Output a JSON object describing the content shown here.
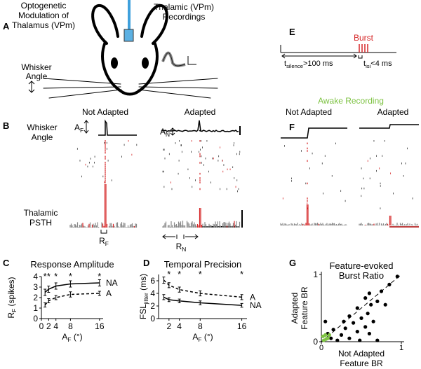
{
  "panel_a": {
    "letter": "A",
    "opto_title": [
      "Optogenetic",
      "Modulation of",
      "Thalamus (VPm)"
    ],
    "recording_title": [
      "Thalamic (VPm)",
      "Recordings"
    ],
    "whisker_label": [
      "Whisker",
      "Angle"
    ]
  },
  "panel_b": {
    "letter": "B",
    "not_adapted": "Not Adapted",
    "adapted": "Adapted",
    "whisker_label": [
      "Whisker",
      "Angle"
    ],
    "af": {
      "main": "A",
      "sub": "F"
    },
    "an": {
      "main": "A",
      "sub": "N"
    },
    "psth_label": [
      "Thalamic",
      "PSTH"
    ],
    "rf": {
      "main": "R",
      "sub": "F"
    },
    "rn": {
      "main": "R",
      "sub": "N"
    }
  },
  "panel_e": {
    "letter": "E",
    "burst": "Burst",
    "t_silence": {
      "main": "t",
      "sub": "silence",
      "rest": ">100 ms"
    },
    "t_isi": {
      "main": "t",
      "sub": "isi",
      "rest": "<4 ms"
    }
  },
  "panel_f": {
    "letter": "F",
    "title": "Awake Recording",
    "not_adapted": "Not Adapted",
    "adapted": "Adapted"
  },
  "panel_c": {
    "letter": "C",
    "type": "line",
    "title": "Response Amplitude",
    "ylabel": {
      "main": "R",
      "sub": "F",
      "rest": " (spikes)"
    },
    "xlabel": {
      "main": "A",
      "sub": "F",
      "rest": " (°)"
    },
    "x": [
      1,
      2,
      4,
      8,
      16
    ],
    "series": [
      {
        "name": "NA",
        "color": "#000000",
        "dashed": false,
        "values": [
          2.5,
          2.8,
          3.1,
          3.3,
          3.4
        ],
        "errors": [
          0.3,
          0.3,
          0.3,
          0.3,
          0.3
        ]
      },
      {
        "name": "A",
        "color": "#000000",
        "dashed": true,
        "values": [
          1.3,
          1.7,
          2.0,
          2.3,
          2.4
        ],
        "errors": [
          0.2,
          0.2,
          0.2,
          0.25,
          0.2
        ]
      }
    ],
    "significance": [
      "*",
      "*",
      "*",
      "*",
      "*"
    ],
    "xlim": [
      0,
      17
    ],
    "ylim": [
      0,
      4
    ],
    "xticks": [
      0,
      2,
      4,
      8,
      16
    ],
    "yticks": [
      0,
      1,
      2,
      3,
      4
    ]
  },
  "panel_d": {
    "letter": "D",
    "type": "line",
    "title": "Temporal Precision",
    "ylabel": {
      "main": "FSL",
      "sub": "jitter",
      "rest": " (ms)"
    },
    "xlabel": {
      "main": "A",
      "sub": "F",
      "rest": " (°)"
    },
    "x": [
      1,
      2,
      4,
      8,
      16
    ],
    "series": [
      {
        "name": "A",
        "color": "#000000",
        "dashed": true,
        "values": [
          6.1,
          5.3,
          4.6,
          4.0,
          3.4
        ],
        "errors": [
          0.5,
          0.4,
          0.4,
          0.4,
          0.4
        ]
      },
      {
        "name": "NA",
        "color": "#000000",
        "dashed": false,
        "values": [
          3.4,
          3.0,
          2.8,
          2.5,
          2.1
        ],
        "errors": [
          0.4,
          0.3,
          0.3,
          0.3,
          0.3
        ]
      }
    ],
    "significance": [
      null,
      "*",
      "*",
      "*",
      "*"
    ],
    "xlim": [
      0,
      17
    ],
    "ylim": [
      0,
      7
    ],
    "xticks": [
      2,
      4,
      8,
      16
    ],
    "yticks": [
      0,
      2,
      4,
      6
    ]
  },
  "panel_g": {
    "letter": "G",
    "type": "scatter",
    "title": [
      "Feature-evoked",
      "Burst Ratio"
    ],
    "ylabel": [
      "Adapted",
      "Feature BR"
    ],
    "xlabel": [
      "Not Adapted",
      "Feature BR"
    ],
    "series": [
      {
        "color": "#000000",
        "x": [
          0.95,
          0.85,
          0.75,
          0.6,
          0.55,
          0.7,
          0.62,
          0.8,
          0.45,
          0.58,
          0.35,
          0.5,
          0.28,
          0.4,
          0.65,
          0.55,
          0.3,
          0.45,
          0.6,
          0.25,
          0.35,
          0.48,
          0.7,
          0.2,
          0.12,
          0.08,
          0.05,
          0.15
        ],
        "values": [
          0.97,
          0.85,
          0.75,
          0.72,
          0.65,
          0.6,
          0.55,
          0.55,
          0.5,
          0.42,
          0.38,
          0.35,
          0.3,
          0.28,
          0.3,
          0.22,
          0.2,
          0.15,
          0.12,
          0.1,
          0.05,
          0.02,
          0.02,
          0.02,
          0.05,
          0.12,
          0.3,
          0.18
        ]
      },
      {
        "color": "#7dc242",
        "x": [
          0.02,
          0.05,
          0.08,
          0.1,
          0.03,
          0.06
        ],
        "values": [
          0.08,
          0.1,
          0.05,
          0.1,
          0.02,
          0.04
        ]
      }
    ],
    "xlim": [
      0,
      1
    ],
    "ylim": [
      0,
      1
    ],
    "xticks": [
      0,
      1
    ],
    "yticks": [
      0,
      1
    ]
  }
}
